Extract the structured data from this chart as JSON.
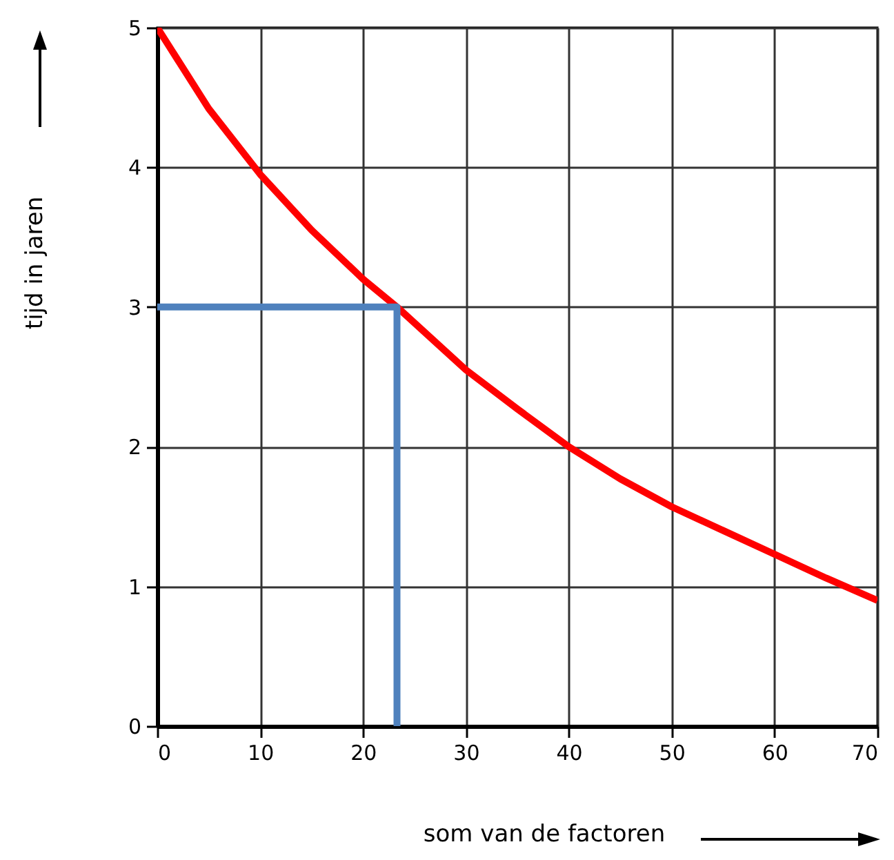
{
  "chart_data": {
    "type": "line",
    "xlabel": "som van de factoren",
    "ylabel": "tijd in jaren",
    "xlim": [
      0,
      70
    ],
    "ylim": [
      0,
      5
    ],
    "xticks": [
      0,
      10,
      20,
      30,
      40,
      50,
      60,
      70
    ],
    "yticks": [
      0,
      1,
      2,
      3,
      4,
      5
    ],
    "grid": true,
    "marker": "none",
    "line_style": "solid",
    "series": [
      {
        "color": "#ff0000",
        "x": [
          0,
          5,
          10,
          15,
          20,
          23.3,
          30,
          35,
          40,
          45,
          50,
          55,
          60,
          65,
          70
        ],
        "values": [
          5,
          4.42,
          3.95,
          3.55,
          3.2,
          3.0,
          2.55,
          2.27,
          2.0,
          1.77,
          1.57,
          1.4,
          1.23,
          1.06,
          0.9
        ]
      },
      {
        "color": "#4f81bd",
        "x": [
          0,
          23.3,
          23.3
        ],
        "values": [
          3,
          3,
          0
        ]
      }
    ]
  }
}
